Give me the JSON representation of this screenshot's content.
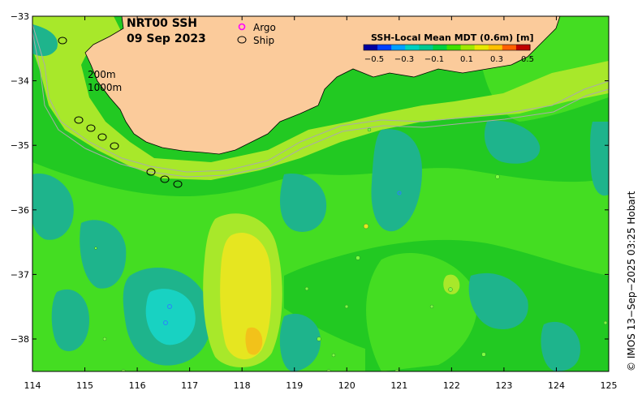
{
  "title": {
    "line1": "NRT00 SSH",
    "line2": "09 Sep 2023"
  },
  "legend": {
    "argo": "Argo",
    "ship": "Ship",
    "argo_color": "#ff00ff",
    "ship_color": "#000000"
  },
  "colorbar": {
    "title": "SSH-Local Mean MDT (0.6m) [m]",
    "ticks": [
      "−0.5",
      "−0.3",
      "−0.1",
      "0.1",
      "0.3",
      "0.5"
    ],
    "colors": [
      "#0000a0",
      "#0040ff",
      "#00a0ff",
      "#00d0c0",
      "#00c890",
      "#00d040",
      "#40e000",
      "#a0e800",
      "#e8e800",
      "#ffc000",
      "#ff6000",
      "#c00000"
    ]
  },
  "contours": {
    "label_200": "200m",
    "label_1000": "1000m"
  },
  "axes": {
    "x_ticks": [
      "114",
      "115",
      "116",
      "117",
      "118",
      "119",
      "120",
      "121",
      "122",
      "123",
      "124",
      "125"
    ],
    "y_ticks": [
      "−33",
      "−34",
      "−35",
      "−36",
      "−37",
      "−38"
    ]
  },
  "colors": {
    "land": "#fbcb9b",
    "sea_base": "#22c922",
    "lighter_green": "#44dd22",
    "yellow_green": "#a8e82a",
    "yellow": "#e6e620",
    "orange": "#f2c21a",
    "teal": "#1eb48c",
    "cyan": "#18d2c2",
    "contour_line": "#aaaaaa"
  },
  "credit": "© IMOS 13−Sep−2025 03:25 Hobart"
}
